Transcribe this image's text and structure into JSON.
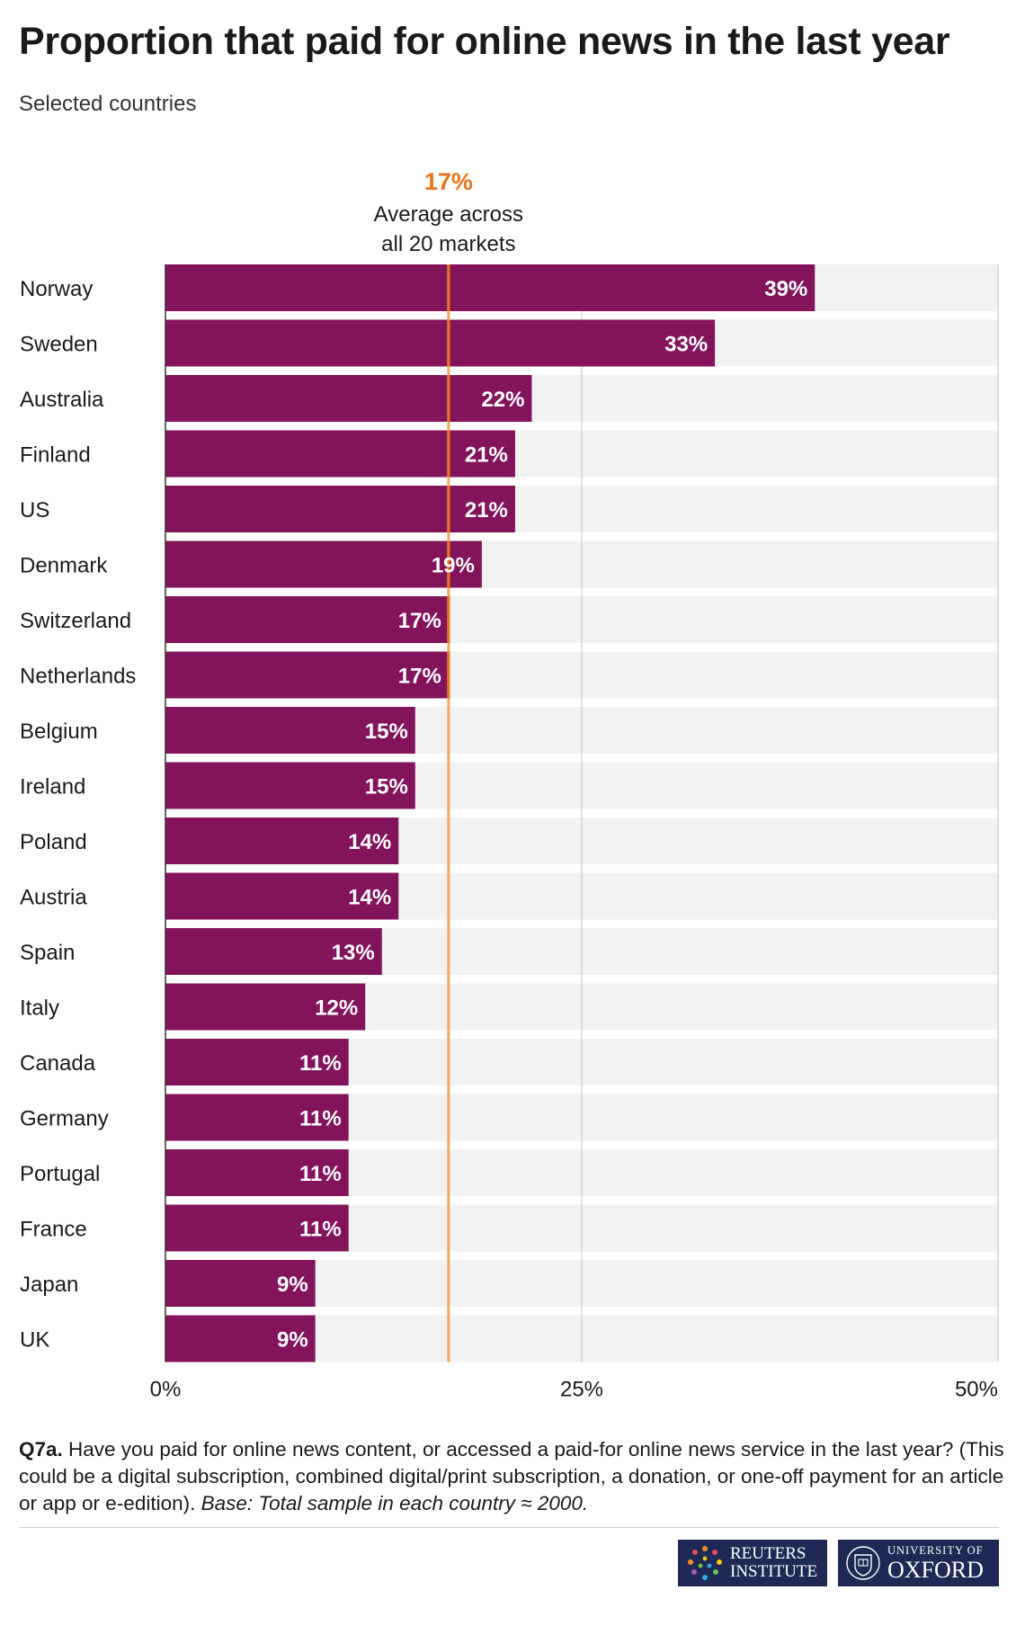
{
  "header": {
    "title": "Proportion that paid for online news in the last year",
    "subtitle": "Selected countries"
  },
  "annotation": {
    "value": "17%",
    "line1": "Average across",
    "line2": "all 20 markets"
  },
  "chart_data": {
    "type": "bar",
    "orientation": "horizontal",
    "categories": [
      "Norway",
      "Sweden",
      "Australia",
      "Finland",
      "US",
      "Denmark",
      "Switzerland",
      "Netherlands",
      "Belgium",
      "Ireland",
      "Poland",
      "Austria",
      "Spain",
      "Italy",
      "Canada",
      "Germany",
      "Portugal",
      "France",
      "Japan",
      "UK"
    ],
    "values": [
      39,
      33,
      22,
      21,
      21,
      19,
      17,
      17,
      15,
      15,
      14,
      14,
      13,
      12,
      11,
      11,
      11,
      11,
      9,
      9
    ],
    "value_labels": [
      "39%",
      "33%",
      "22%",
      "21%",
      "21%",
      "19%",
      "17%",
      "17%",
      "15%",
      "15%",
      "14%",
      "14%",
      "13%",
      "12%",
      "11%",
      "11%",
      "11%",
      "11%",
      "9%",
      "9%"
    ],
    "xlim": [
      0,
      50
    ],
    "x_ticks": [
      0,
      25,
      50
    ],
    "x_tick_labels": [
      "0%",
      "25%",
      "50%"
    ],
    "reference_line": {
      "value": 17
    },
    "grid": true,
    "colors": {
      "bar": "#83145b",
      "track": "#f2f2f2",
      "reference": "#e8751a",
      "reference_light": "#f2a766",
      "gridline": "#cccccc"
    }
  },
  "footnote": {
    "question_id": "Q7a.",
    "question": " Have you paid for online news content, or accessed a paid-for online news service in the last year? (This could be a digital subscription, combined digital/print subscription, a donation, or one-off payment for an article or app or e-edition). ",
    "base": "Base: Total sample in each country ≈ 2000."
  },
  "logos": {
    "reuters_line1": "REUTERS",
    "reuters_line2": "INSTITUTE",
    "oxford_line1": "UNIVERSITY OF",
    "oxford_line2": "OXFORD"
  }
}
